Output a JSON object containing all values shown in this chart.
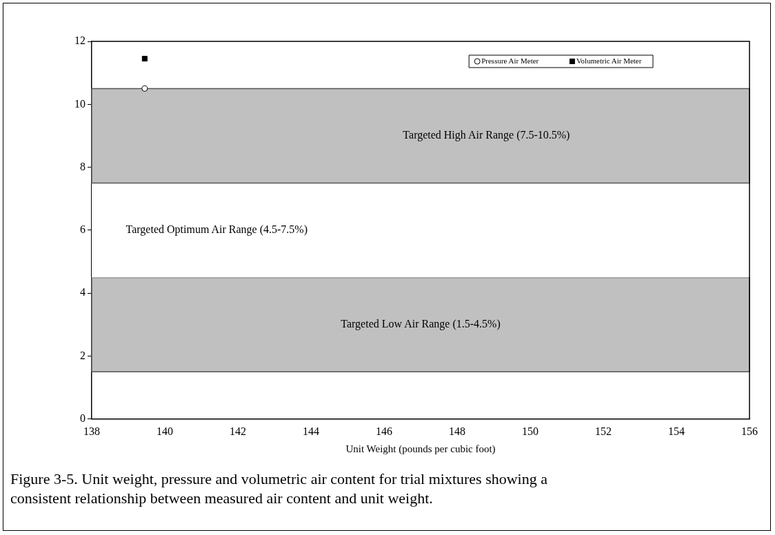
{
  "chart_data": {
    "type": "scatter",
    "xlabel": "Unit Weight (pounds per cubic foot)",
    "xlim": [
      138,
      156
    ],
    "xticks": [
      138,
      140,
      142,
      144,
      146,
      148,
      150,
      152,
      154,
      156
    ],
    "ylim": [
      0,
      12
    ],
    "yticks": [
      0,
      2,
      4,
      6,
      8,
      10,
      12
    ],
    "series": [
      {
        "name": "Pressure Air Meter",
        "color": "#000000",
        "marker": "circle",
        "x": [
          139.45
        ],
        "values": [
          10.5
        ]
      },
      {
        "name": "Volumetric Air Meter",
        "color": "#000000",
        "marker": "square",
        "x": [
          139.45
        ],
        "values": [
          11.45
        ]
      }
    ],
    "bands": [
      {
        "axis": "y",
        "from": 1.5,
        "to": 4.5,
        "label": "Targeted Low Air Range (1.5-4.5%)",
        "color": "#c0c0c0"
      },
      {
        "axis": "y",
        "from": 4.5,
        "to": 7.5,
        "label": "Targeted Optimum Air Range (4.5-7.5%)",
        "color": "#ffffff"
      },
      {
        "axis": "y",
        "from": 7.5,
        "to": 10.5,
        "label": "Targeted High Air Range (7.5-10.5%)",
        "color": "#c0c0c0"
      }
    ],
    "legend": "top right",
    "grid": false,
    "annotations": [
      "Figure 3-5. Unit weight, pressure and volumetric air content for trial mixtures showing a consistent relationship between measured air content and unit weight."
    ]
  }
}
